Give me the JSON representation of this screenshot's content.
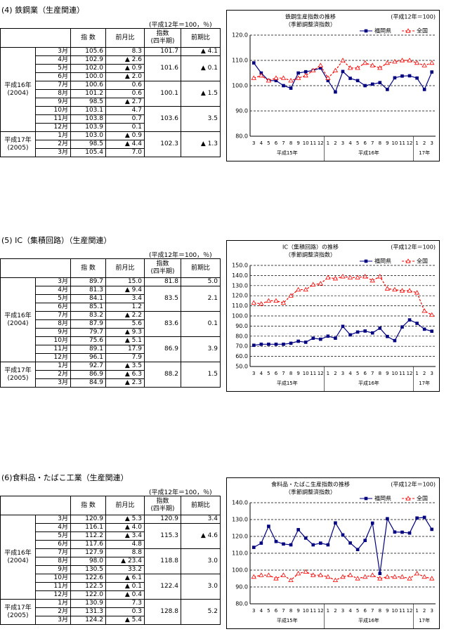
{
  "sections": [
    {
      "title": "(4) 鉄鋼業（生産関連）",
      "unit": "(平成12年＝100，％)",
      "headers": [
        "指 数",
        "前月比",
        [
          "指数",
          "(四半期)"
        ],
        "前期比"
      ],
      "years": [
        {
          "label": "平成16年",
          "sub": "(2004)",
          "quarters": [
            {
              "index": "101.7",
              "change": "▲ 4.1",
              "months": [
                {
                  "month": "3月",
                  "index": "105.6",
                  "change": "8.3"
                }
              ]
            },
            {
              "index": "101.6",
              "change": "▲ 0.1",
              "months": [
                {
                  "month": "4月",
                  "index": "102.9",
                  "change": "▲ 2.6"
                },
                {
                  "month": "5月",
                  "index": "102.0",
                  "change": "▲ 0.9"
                },
                {
                  "month": "6月",
                  "index": "100.0",
                  "change": "▲ 2.0"
                }
              ]
            },
            {
              "index": "100.1",
              "change": "▲ 1.5",
              "months": [
                {
                  "month": "7月",
                  "index": "100.6",
                  "change": "0.6"
                },
                {
                  "month": "8月",
                  "index": "101.2",
                  "change": "0.6"
                },
                {
                  "month": "9月",
                  "index": "98.5",
                  "change": "▲ 2.7"
                }
              ]
            },
            {
              "index": "103.6",
              "change": "3.5",
              "months": [
                {
                  "month": "10月",
                  "index": "103.1",
                  "change": "4.7"
                },
                {
                  "month": "11月",
                  "index": "103.8",
                  "change": "0.7"
                },
                {
                  "month": "12月",
                  "index": "103.9",
                  "change": "0.1"
                }
              ]
            }
          ]
        },
        {
          "label": "平成17年",
          "sub": "(2005)",
          "quarters": [
            {
              "index": "102.3",
              "change": "▲ 1.3",
              "months": [
                {
                  "month": "1月",
                  "index": "103.0",
                  "change": "▲ 0.9"
                },
                {
                  "month": "2月",
                  "index": "98.5",
                  "change": "▲ 4.4"
                },
                {
                  "month": "3月",
                  "index": "105.4",
                  "change": "7.0"
                }
              ]
            }
          ]
        }
      ]
    },
    {
      "title": "(5) IC（集積回路）（生産関連）",
      "unit": "(平成12年＝100，％)",
      "headers": [
        "指 数",
        "前月比",
        [
          "指数",
          "(四半期)"
        ],
        "前期比"
      ],
      "years": [
        {
          "label": "平成16年",
          "sub": "(2004)",
          "quarters": [
            {
              "index": "81.8",
              "change": "5.0",
              "months": [
                {
                  "month": "3月",
                  "index": "89.7",
                  "change": "15.0"
                }
              ]
            },
            {
              "index": "83.5",
              "change": "2.1",
              "months": [
                {
                  "month": "4月",
                  "index": "81.3",
                  "change": "▲ 9.4"
                },
                {
                  "month": "5月",
                  "index": "84.1",
                  "change": "3.4"
                },
                {
                  "month": "6月",
                  "index": "85.1",
                  "change": "1.2"
                }
              ]
            },
            {
              "index": "83.6",
              "change": "0.1",
              "months": [
                {
                  "month": "7月",
                  "index": "83.2",
                  "change": "▲ 2.2"
                },
                {
                  "month": "8月",
                  "index": "87.9",
                  "change": "5.6"
                },
                {
                  "month": "9月",
                  "index": "79.7",
                  "change": "▲ 9.3"
                }
              ]
            },
            {
              "index": "86.9",
              "change": "3.9",
              "months": [
                {
                  "month": "10月",
                  "index": "75.6",
                  "change": "▲ 5.1"
                },
                {
                  "month": "11月",
                  "index": "89.1",
                  "change": "17.9"
                },
                {
                  "month": "12月",
                  "index": "96.1",
                  "change": "7.9"
                }
              ]
            }
          ]
        },
        {
          "label": "平成17年",
          "sub": "(2005)",
          "quarters": [
            {
              "index": "88.2",
              "change": "1.5",
              "months": [
                {
                  "month": "1月",
                  "index": "92.7",
                  "change": "▲ 3.5"
                },
                {
                  "month": "2月",
                  "index": "86.9",
                  "change": "▲ 6.3"
                },
                {
                  "month": "3月",
                  "index": "84.9",
                  "change": "▲ 2.3"
                }
              ]
            }
          ]
        }
      ]
    },
    {
      "title": "(6)食料品・たばこ工業（生産関連）",
      "unit": "(平成12年＝100，％)",
      "headers": [
        "指 数",
        "前月比",
        [
          "指数",
          "(四半期)"
        ],
        "前期比"
      ],
      "years": [
        {
          "label": "平成16年",
          "sub": "(2004)",
          "quarters": [
            {
              "index": "120.9",
              "change": "3.4",
              "months": [
                {
                  "month": "3月",
                  "index": "120.9",
                  "change": "▲ 5.3"
                }
              ]
            },
            {
              "index": "115.3",
              "change": "▲ 4.6",
              "months": [
                {
                  "month": "4月",
                  "index": "116.1",
                  "change": "▲ 4.0"
                },
                {
                  "month": "5月",
                  "index": "112.2",
                  "change": "▲ 3.4"
                },
                {
                  "month": "6月",
                  "index": "117.6",
                  "change": "4.8"
                }
              ]
            },
            {
              "index": "118.8",
              "change": "3.0",
              "months": [
                {
                  "month": "7月",
                  "index": "127.9",
                  "change": "8.8"
                },
                {
                  "month": "8月",
                  "index": "98.0",
                  "change": "▲ 23.4"
                },
                {
                  "month": "9月",
                  "index": "130.5",
                  "change": "33.2"
                }
              ]
            },
            {
              "index": "122.4",
              "change": "3.0",
              "months": [
                {
                  "month": "10月",
                  "index": "122.6",
                  "change": "▲ 6.1"
                },
                {
                  "month": "11月",
                  "index": "122.5",
                  "change": "▲ 0.1"
                },
                {
                  "month": "12月",
                  "index": "122.0",
                  "change": "▲ 0.4"
                }
              ]
            }
          ]
        },
        {
          "label": "平成17年",
          "sub": "(2005)",
          "quarters": [
            {
              "index": "128.8",
              "change": "5.2",
              "months": [
                {
                  "month": "1月",
                  "index": "130.9",
                  "change": "7.3"
                },
                {
                  "month": "2月",
                  "index": "131.3",
                  "change": "0.3"
                },
                {
                  "month": "3月",
                  "index": "124.2",
                  "change": "▲ 5.4"
                }
              ]
            }
          ]
        }
      ]
    }
  ],
  "chart_data": [
    {
      "type": "line",
      "title": "鉄鋼生産指数の推移",
      "subtitle": "（季節調整済指数）",
      "note": "(平成12年＝100)",
      "categories": [
        "3",
        "4",
        "5",
        "6",
        "7",
        "8",
        "9",
        "10",
        "11",
        "12",
        "1",
        "2",
        "3",
        "4",
        "5",
        "6",
        "7",
        "8",
        "9",
        "10",
        "11",
        "12",
        "1",
        "2",
        "3"
      ],
      "year_labels": [
        "平成15年",
        "平成16年",
        "17年"
      ],
      "series": [
        {
          "name": "福岡県",
          "color": "#000080",
          "marker": "square",
          "dashed": false,
          "values": [
            109,
            105,
            102,
            102,
            100,
            99,
            105,
            105.5,
            106,
            107,
            102,
            97.5,
            105.6,
            102.9,
            102.0,
            100.0,
            100.6,
            101.2,
            98.5,
            103.1,
            103.8,
            103.9,
            103.0,
            98.5,
            105.4
          ]
        },
        {
          "name": "全国",
          "color": "#ff0000",
          "marker": "triangle",
          "dashed": true,
          "values": [
            103,
            104,
            102,
            103,
            103,
            102,
            103,
            104,
            106,
            108,
            103,
            106,
            110,
            107,
            107,
            109,
            108,
            107,
            109,
            109.5,
            110,
            110,
            109,
            108,
            109
          ]
        }
      ],
      "ylim": [
        80,
        120
      ],
      "yticks": [
        {
          "value": 80,
          "label": "80.0"
        },
        {
          "value": 90,
          "label": "90.0"
        },
        {
          "value": 100,
          "label": "100.0"
        },
        {
          "value": 110,
          "label": "110.0"
        },
        {
          "value": 120,
          "label": "120.0"
        }
      ],
      "grid": true,
      "legend": "top-right"
    },
    {
      "type": "line",
      "title": "IC（集積回路）の推移",
      "subtitle": "（季節調整済指数）",
      "note": "(平成12年＝100)",
      "categories": [
        "3",
        "4",
        "5",
        "6",
        "7",
        "8",
        "9",
        "10",
        "11",
        "12",
        "1",
        "2",
        "3",
        "4",
        "5",
        "6",
        "7",
        "8",
        "9",
        "10",
        "11",
        "12",
        "1",
        "2",
        "3"
      ],
      "year_labels": [
        "平成15年",
        "平成16年",
        "17年"
      ],
      "series": [
        {
          "name": "福岡県",
          "color": "#000080",
          "marker": "square",
          "dashed": false,
          "values": [
            71,
            72,
            72,
            72,
            72,
            73,
            75,
            74,
            78,
            77,
            80,
            78,
            89.7,
            81.3,
            84.1,
            85.1,
            83.2,
            87.9,
            79.7,
            75.6,
            89.1,
            96.1,
            92.7,
            86.9,
            84.9
          ]
        },
        {
          "name": "全国",
          "color": "#ff0000",
          "marker": "triangle",
          "dashed": true,
          "values": [
            113,
            112,
            115,
            115,
            113,
            120,
            126,
            126,
            131,
            132,
            138,
            137,
            139,
            138,
            138,
            139,
            135,
            139,
            127,
            126,
            125,
            125,
            123,
            105,
            101
          ]
        }
      ],
      "ylim": [
        50,
        150
      ],
      "yticks": [
        {
          "value": 50,
          "label": "50.0"
        },
        {
          "value": 60,
          "label": "60.0"
        },
        {
          "value": 70,
          "label": "70.0"
        },
        {
          "value": 80,
          "label": "80.0"
        },
        {
          "value": 90,
          "label": "90.0"
        },
        {
          "value": 100,
          "label": "100.0"
        },
        {
          "value": 110,
          "label": "110.0"
        },
        {
          "value": 120,
          "label": "120.0"
        },
        {
          "value": 130,
          "label": "130.0"
        },
        {
          "value": 140,
          "label": "140.0"
        },
        {
          "value": 150,
          "label": "150.0"
        }
      ],
      "grid": true,
      "legend": "top-right"
    },
    {
      "type": "line",
      "title": "食料品・たばこ生産指数の推移",
      "subtitle": "（季節調整済指数）",
      "note": "(平成12年＝100)",
      "categories": [
        "3",
        "4",
        "5",
        "6",
        "7",
        "8",
        "9",
        "10",
        "11",
        "12",
        "1",
        "2",
        "3",
        "4",
        "5",
        "6",
        "7",
        "8",
        "9",
        "10",
        "11",
        "12",
        "1",
        "2",
        "3"
      ],
      "year_labels": [
        "平成15年",
        "平成16年",
        "17年"
      ],
      "series": [
        {
          "name": "福岡県",
          "color": "#000080",
          "marker": "square",
          "dashed": false,
          "values": [
            113.5,
            116,
            126,
            117,
            115.5,
            115,
            124,
            119,
            115,
            116,
            115,
            128,
            120.9,
            116.1,
            112.2,
            117.6,
            127.9,
            98.0,
            130.5,
            122.6,
            122.5,
            122.0,
            130.9,
            131.3,
            124.2
          ]
        },
        {
          "name": "全国",
          "color": "#ff0000",
          "marker": "triangle",
          "dashed": true,
          "values": [
            96,
            97,
            97,
            95,
            97,
            94,
            98,
            99,
            97,
            97,
            96,
            94,
            96,
            97,
            95,
            96,
            97,
            95,
            96,
            96,
            96,
            95,
            98,
            96,
            95
          ]
        }
      ],
      "ylim": [
        80,
        140
      ],
      "yticks": [
        {
          "value": 80,
          "label": "80.0"
        },
        {
          "value": 90,
          "label": "90.0"
        },
        {
          "value": 100,
          "label": "100.0"
        },
        {
          "value": 110,
          "label": "110.0"
        },
        {
          "value": 120,
          "label": "120.0"
        },
        {
          "value": 130,
          "label": "130.0"
        },
        {
          "value": 140,
          "label": "140.0"
        }
      ],
      "grid": true,
      "legend": "top-right"
    }
  ]
}
